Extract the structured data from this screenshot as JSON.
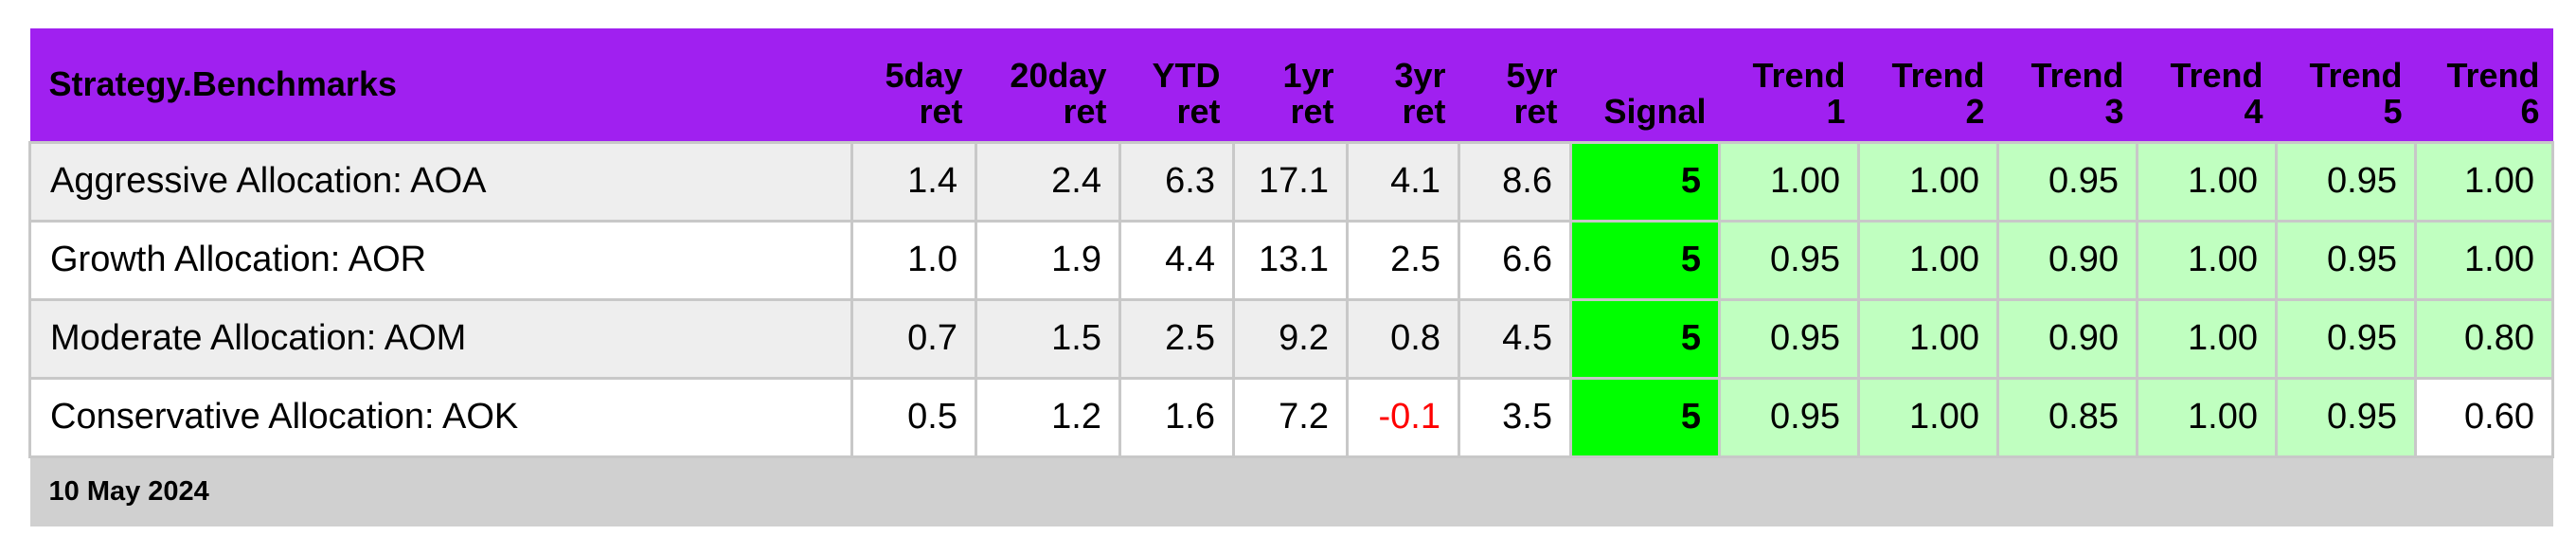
{
  "header": {
    "title": "Strategy.Benchmarks",
    "columns": [
      [
        "5day",
        "ret"
      ],
      [
        "20day",
        "ret"
      ],
      [
        "YTD",
        "ret"
      ],
      [
        "1yr",
        "ret"
      ],
      [
        "3yr",
        "ret"
      ],
      [
        "5yr",
        "ret"
      ],
      [
        "Signal"
      ],
      [
        "Trend",
        "1"
      ],
      [
        "Trend",
        "2"
      ],
      [
        "Trend",
        "3"
      ],
      [
        "Trend",
        "4"
      ],
      [
        "Trend",
        "5"
      ],
      [
        "Trend",
        "6"
      ]
    ]
  },
  "rows": [
    {
      "name": "Aggressive Allocation: AOA",
      "returns": [
        "1.4",
        "2.4",
        "6.3",
        "17.1",
        "4.1",
        "8.6"
      ],
      "signal": "5",
      "trends": [
        "1.00",
        "1.00",
        "0.95",
        "1.00",
        "0.95",
        "1.00"
      ]
    },
    {
      "name": "Growth Allocation: AOR",
      "returns": [
        "1.0",
        "1.9",
        "4.4",
        "13.1",
        "2.5",
        "6.6"
      ],
      "signal": "5",
      "trends": [
        "0.95",
        "1.00",
        "0.90",
        "1.00",
        "0.95",
        "1.00"
      ]
    },
    {
      "name": "Moderate Allocation: AOM",
      "returns": [
        "0.7",
        "1.5",
        "2.5",
        "9.2",
        "0.8",
        "4.5"
      ],
      "signal": "5",
      "trends": [
        "0.95",
        "1.00",
        "0.90",
        "1.00",
        "0.95",
        "0.80"
      ]
    },
    {
      "name": "Conservative Allocation: AOK",
      "returns": [
        "0.5",
        "1.2",
        "1.6",
        "7.2",
        "-0.1",
        "3.5"
      ],
      "signal": "5",
      "trends": [
        "0.95",
        "1.00",
        "0.85",
        "1.00",
        "0.95",
        "0.60"
      ]
    }
  ],
  "footer": {
    "date": "10 May 2024"
  },
  "colors": {
    "header_bg": "#a020f0",
    "signal_bg": "#00ff00",
    "trend_high_bg": "#c0ffc0",
    "negative_text": "#ff0000",
    "footer_bg": "#d0d0d0"
  }
}
